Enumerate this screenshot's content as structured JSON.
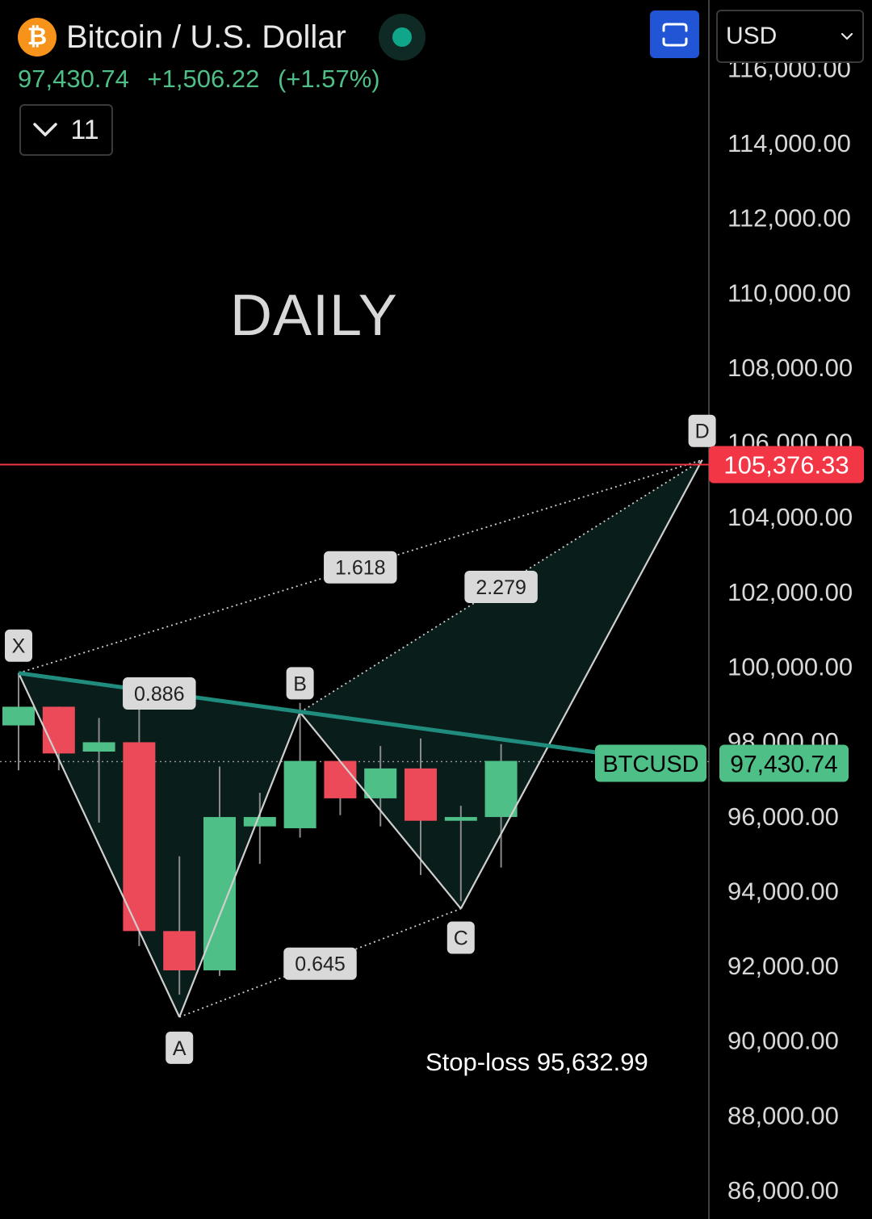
{
  "header": {
    "logo_glyph": "₿",
    "title": "Bitcoin / U.S. Dollar",
    "status_color": "#0fa68a",
    "price": "97,430.74",
    "change": "+1,506.22",
    "change_pct": "(+1.57%)",
    "indicator_count": "11",
    "currency": "USD"
  },
  "colors": {
    "up": "#4ebf86",
    "down": "#ec4a59",
    "alert_line": "#f23645",
    "pattern_fill": "#0a1f1c"
  },
  "annotations": {
    "timeframe": "DAILY",
    "stoploss": "Stop-loss 95,632.99"
  },
  "chart_data": {
    "type": "candlestick",
    "symbol": "BTCUSD",
    "ylim": [
      85200,
      117800
    ],
    "y_ticks": [
      "116,000.00",
      "114,000.00",
      "112,000.00",
      "110,000.00",
      "108,000.00",
      "106,000.00",
      "104,000.00",
      "102,000.00",
      "100,000.00",
      "98,000.00",
      "96,000.00",
      "94,000.00",
      "92,000.00",
      "90,000.00",
      "88,000.00",
      "86,000.00"
    ],
    "y_tick_values": [
      116000,
      114000,
      112000,
      110000,
      108000,
      106000,
      104000,
      102000,
      100000,
      98000,
      96000,
      94000,
      92000,
      90000,
      88000,
      86000
    ],
    "candles": [
      {
        "o": 98400,
        "h": 99800,
        "l": 97200,
        "c": 98900
      },
      {
        "o": 98900,
        "h": 98900,
        "l": 97200,
        "c": 97650
      },
      {
        "o": 97700,
        "h": 98600,
        "l": 95800,
        "c": 97950
      },
      {
        "o": 97950,
        "h": 98900,
        "l": 92500,
        "c": 92900
      },
      {
        "o": 92900,
        "h": 94900,
        "l": 91200,
        "c": 91850
      },
      {
        "o": 91850,
        "h": 97300,
        "l": 91700,
        "c": 95950
      },
      {
        "o": 95700,
        "h": 96600,
        "l": 94700,
        "c": 95950
      },
      {
        "o": 95650,
        "h": 99000,
        "l": 95400,
        "c": 97450
      },
      {
        "o": 97450,
        "h": 97450,
        "l": 96000,
        "c": 96450
      },
      {
        "o": 96450,
        "h": 97850,
        "l": 95700,
        "c": 97250
      },
      {
        "o": 97250,
        "h": 98050,
        "l": 94400,
        "c": 95850
      },
      {
        "o": 95850,
        "h": 96250,
        "l": 93700,
        "c": 95950
      },
      {
        "o": 95950,
        "h": 97900,
        "l": 94600,
        "c": 97450
      }
    ],
    "current_price": 97430.74,
    "current_price_label": "97,430.74",
    "ticker_label": "BTCUSD",
    "alert_price": 105376.33,
    "alert_label": "105,376.33",
    "trend_line": [
      {
        "x": 0,
        "y": 99800
      },
      {
        "x": 14.9,
        "y": 97600
      }
    ],
    "pattern": {
      "points": [
        {
          "label": "X",
          "x": 0,
          "y": 99800
        },
        {
          "label": "A",
          "x": 4,
          "y": 90600
        },
        {
          "label": "B",
          "x": 7,
          "y": 98750
        },
        {
          "label": "C",
          "x": 11,
          "y": 93500
        },
        {
          "label": "D",
          "x": 17,
          "y": 105500
        }
      ],
      "ratios": [
        {
          "value": "0.886",
          "from": "X",
          "to": "B"
        },
        {
          "value": "0.645",
          "from": "A",
          "to": "C"
        },
        {
          "value": "1.618",
          "from": "X",
          "to": "D"
        },
        {
          "value": "2.279",
          "from": "B",
          "to": "D"
        }
      ]
    }
  }
}
